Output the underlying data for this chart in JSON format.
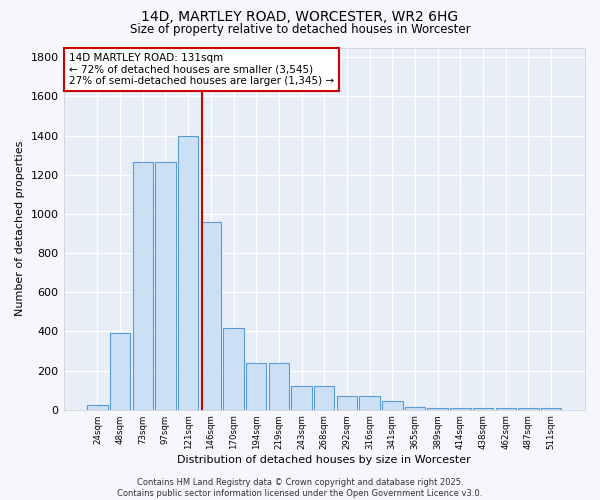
{
  "title_line1": "14D, MARTLEY ROAD, WORCESTER, WR2 6HG",
  "title_line2": "Size of property relative to detached houses in Worcester",
  "xlabel": "Distribution of detached houses by size in Worcester",
  "ylabel": "Number of detached properties",
  "categories": [
    "24sqm",
    "48sqm",
    "73sqm",
    "97sqm",
    "121sqm",
    "146sqm",
    "170sqm",
    "194sqm",
    "219sqm",
    "243sqm",
    "268sqm",
    "292sqm",
    "316sqm",
    "341sqm",
    "365sqm",
    "389sqm",
    "414sqm",
    "438sqm",
    "462sqm",
    "487sqm",
    "511sqm"
  ],
  "values": [
    22,
    390,
    1265,
    1265,
    1400,
    960,
    415,
    240,
    240,
    120,
    120,
    70,
    70,
    45,
    15,
    10,
    10,
    8,
    8,
    8,
    8
  ],
  "bar_color": "#cce0f5",
  "bar_edge_color": "#5b9bd5",
  "vline_x_index": 4.6,
  "vline_color": "#cc0000",
  "annotation_text": "14D MARTLEY ROAD: 131sqm\n← 72% of detached houses are smaller (3,545)\n27% of semi-detached houses are larger (1,345) →",
  "annotation_box_color": "#ffffff",
  "annotation_box_edge": "#cc0000",
  "ylim": [
    0,
    1850
  ],
  "yticks": [
    0,
    200,
    400,
    600,
    800,
    1000,
    1200,
    1400,
    1600,
    1800
  ],
  "plot_bg_color": "#e8eef8",
  "grid_color": "#ffffff",
  "outer_bg_color": "#f5f7fc",
  "footnote": "Contains HM Land Registry data © Crown copyright and database right 2025.\nContains public sector information licensed under the Open Government Licence v3.0."
}
